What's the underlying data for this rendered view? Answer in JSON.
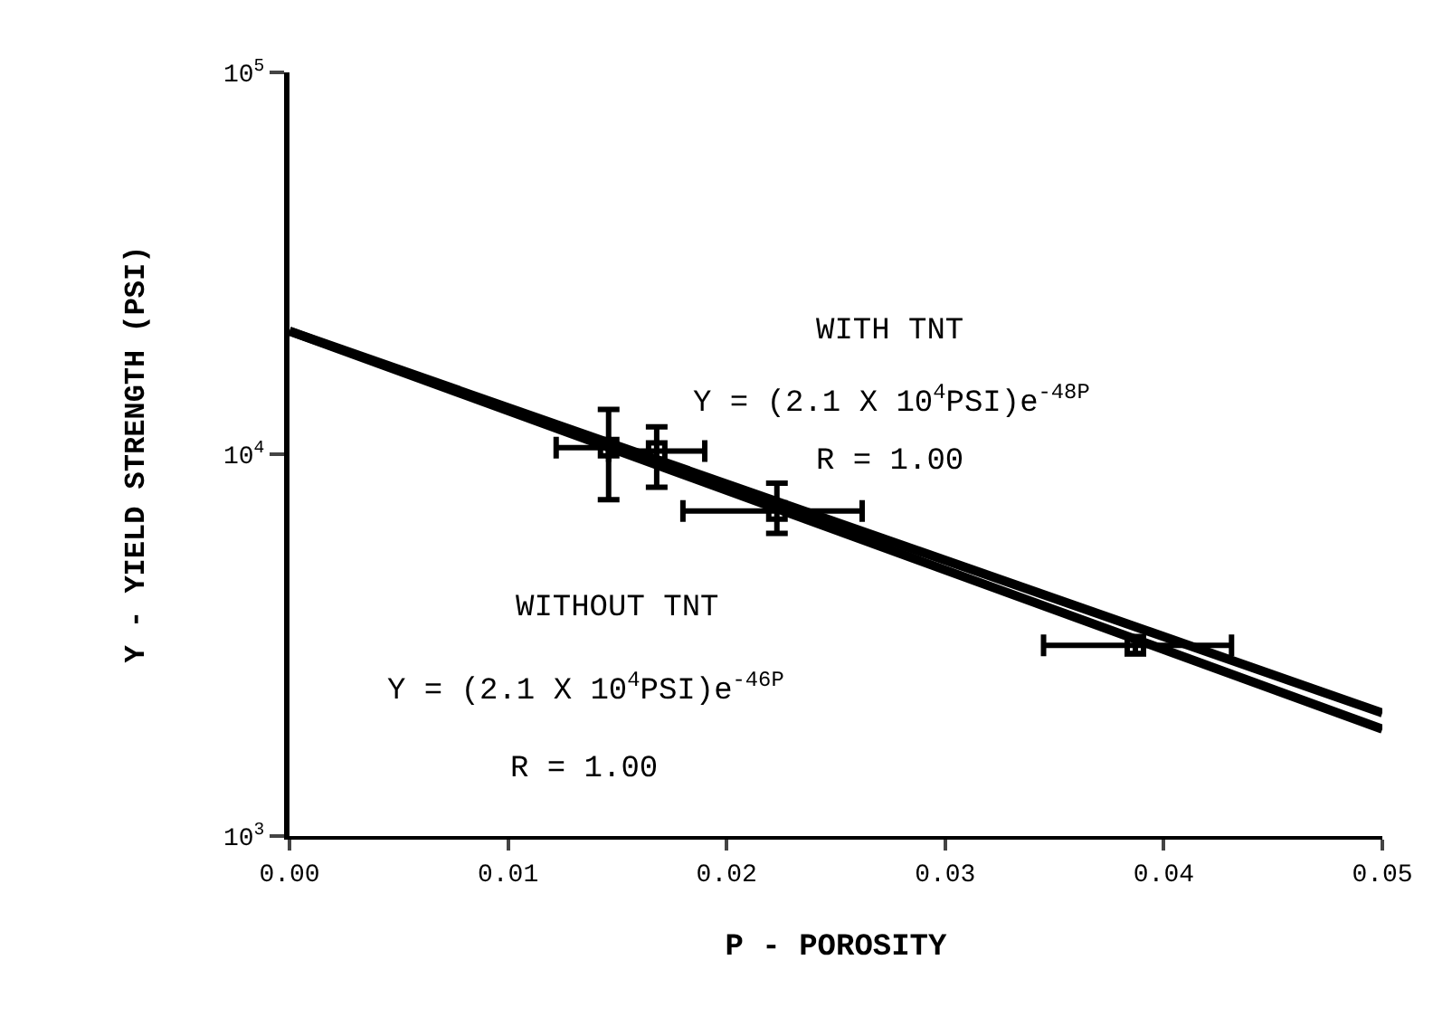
{
  "chart_data": {
    "type": "scatter",
    "xlabel": "P - POROSITY",
    "ylabel": "Y - YIELD STRENGTH (PSI)",
    "log": "y",
    "xlim": [
      0,
      0.05
    ],
    "xticks": [
      {
        "value": 0,
        "label": "0.00"
      },
      {
        "value": 0.01,
        "label": "0.01"
      },
      {
        "value": 0.02,
        "label": "0.02"
      },
      {
        "value": 0.03,
        "label": "0.03"
      },
      {
        "value": 0.04,
        "label": "0.04"
      },
      {
        "value": 0.05,
        "label": "0.05"
      }
    ],
    "ylim": [
      1000,
      100000
    ],
    "yticks": [
      {
        "value": 1000,
        "label": "10$^{3}$"
      },
      {
        "value": 10000,
        "label": "10$^{4}$"
      },
      {
        "value": 100000,
        "label": "10$^{5}$"
      }
    ],
    "grid": false,
    "series": [
      {
        "type": "line",
        "color": "#000000",
        "x": [
          0,
          0.05
        ],
        "values": [
          21000,
          1905
        ]
      },
      {
        "type": "line",
        "color": "#000000",
        "x": [
          0,
          0.05
        ],
        "values": [
          21000,
          2100
        ]
      },
      {
        "color": "#000000",
        "marker": "square",
        "x": [
          0.0146,
          0.0168,
          0.0223,
          0.0387
        ],
        "values": [
          10400,
          10200,
          7100,
          3160
        ],
        "errors": [
          [
            7600,
            13100
          ],
          [
            8200,
            11800
          ],
          [
            6200,
            8400
          ],
          [
            3000,
            3330
          ]
        ],
        "xerrors": [
          [
            0.0122,
            0.0146
          ],
          [
            0.0146,
            0.019
          ],
          [
            0.018,
            0.0262
          ],
          [
            0.0345,
            0.0431
          ]
        ]
      }
    ],
    "annotations": [
      "WITH TNT",
      "Y = (2.1 X 10$^{4}$PSI)e$^{-48P}$",
      "R = 1.00",
      "WITHOUT TNT",
      "Y = (2.1 X 10$^{4}$PSI)e$^{-46P}$",
      "R = 1.00"
    ]
  }
}
